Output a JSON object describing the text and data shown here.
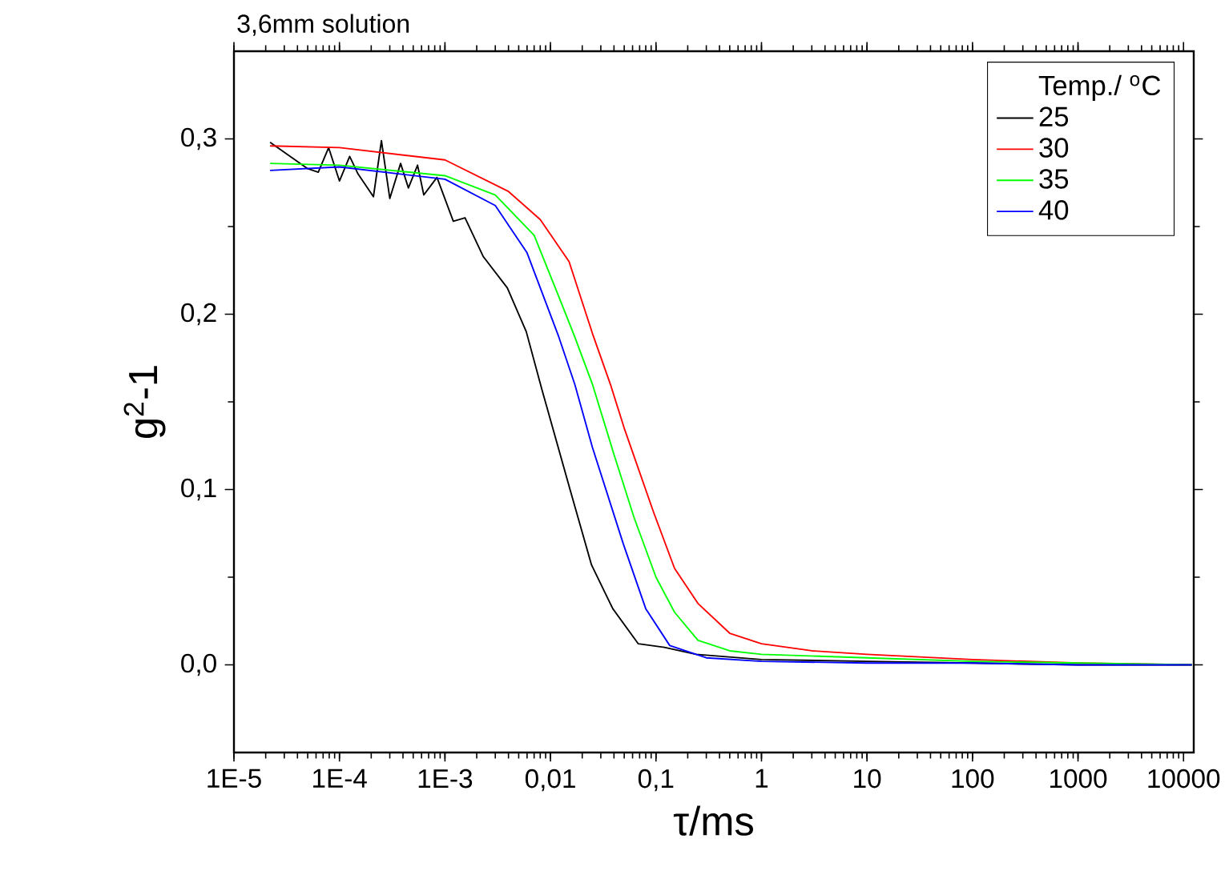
{
  "chart_data": {
    "type": "line",
    "title": "3,6mm solution",
    "xlabel": "τ/ms",
    "ylabel": "g$^{2}$-1",
    "legend_title": "Temp./ $^{o}$C",
    "log": "x",
    "legend": "top right",
    "grid": false,
    "marker": "none",
    "line_style": "solid",
    "xlim": [
      1e-05,
      12500
    ],
    "ylim": [
      -0.05,
      0.35
    ],
    "xticks": [
      {
        "value": 1e-05,
        "label": "1E-5"
      },
      {
        "value": 0.0001,
        "label": "1E-4"
      },
      {
        "value": 0.001,
        "label": "1E-3"
      },
      {
        "value": 0.01,
        "label": "0,01"
      },
      {
        "value": 0.1,
        "label": "0,1"
      },
      1,
      10,
      100,
      1000,
      10000
    ],
    "yticks": [
      {
        "value": 0,
        "label": "0,0"
      },
      {
        "value": 0.1,
        "label": "0,1"
      },
      {
        "value": 0.2,
        "label": "0,2"
      },
      {
        "value": 0.3,
        "label": "0,3"
      }
    ],
    "series": [
      {
        "name": "25",
        "color": "#000000",
        "x": [
          2.2e-05,
          5e-05,
          6.3e-05,
          7.9e-05,
          0.0001,
          0.000125,
          0.00015,
          0.00021,
          0.00025,
          0.0003,
          0.00038,
          0.00045,
          0.00055,
          0.00063,
          0.00084,
          0.0012,
          0.00155,
          0.0023,
          0.0039,
          0.0059,
          0.0083,
          0.0155,
          0.0245,
          0.039,
          0.068,
          0.12,
          0.24,
          1,
          10,
          100,
          1000,
          12000
        ],
        "values": [
          0.298,
          0.283,
          0.281,
          0.295,
          0.276,
          0.29,
          0.28,
          0.267,
          0.299,
          0.266,
          0.286,
          0.272,
          0.285,
          0.268,
          0.278,
          0.253,
          0.255,
          0.233,
          0.215,
          0.19,
          0.157,
          0.099,
          0.057,
          0.032,
          0.012,
          0.01,
          0.006,
          0.003,
          0.002,
          0.001,
          0,
          0
        ]
      },
      {
        "name": "30",
        "color": "#ff0000",
        "x": [
          2.2e-05,
          0.0001,
          0.001,
          0.004,
          0.008,
          0.015,
          0.025,
          0.037,
          0.05,
          0.095,
          0.15,
          0.25,
          0.5,
          1,
          3,
          10,
          100,
          1000,
          12000
        ],
        "values": [
          0.296,
          0.295,
          0.288,
          0.27,
          0.254,
          0.23,
          0.189,
          0.16,
          0.135,
          0.087,
          0.055,
          0.035,
          0.018,
          0.012,
          0.008,
          0.006,
          0.003,
          0.001,
          0
        ]
      },
      {
        "name": "35",
        "color": "#00ff00",
        "x": [
          2.2e-05,
          0.0001,
          0.001,
          0.003,
          0.007,
          0.012,
          0.017,
          0.025,
          0.04,
          0.062,
          0.1,
          0.15,
          0.25,
          0.5,
          1,
          10,
          100,
          1000,
          12000
        ],
        "values": [
          0.286,
          0.285,
          0.279,
          0.268,
          0.245,
          0.21,
          0.187,
          0.16,
          0.12,
          0.084,
          0.05,
          0.03,
          0.014,
          0.008,
          0.006,
          0.004,
          0.002,
          0.001,
          0
        ]
      },
      {
        "name": "40",
        "color": "#0000ff",
        "x": [
          2.2e-05,
          0.0001,
          0.001,
          0.003,
          0.006,
          0.012,
          0.017,
          0.025,
          0.049,
          0.08,
          0.135,
          0.3,
          1,
          10,
          100,
          1000,
          12000
        ],
        "values": [
          0.282,
          0.284,
          0.277,
          0.262,
          0.235,
          0.187,
          0.16,
          0.124,
          0.069,
          0.032,
          0.011,
          0.004,
          0.002,
          0.001,
          0.001,
          0,
          0
        ]
      }
    ]
  }
}
